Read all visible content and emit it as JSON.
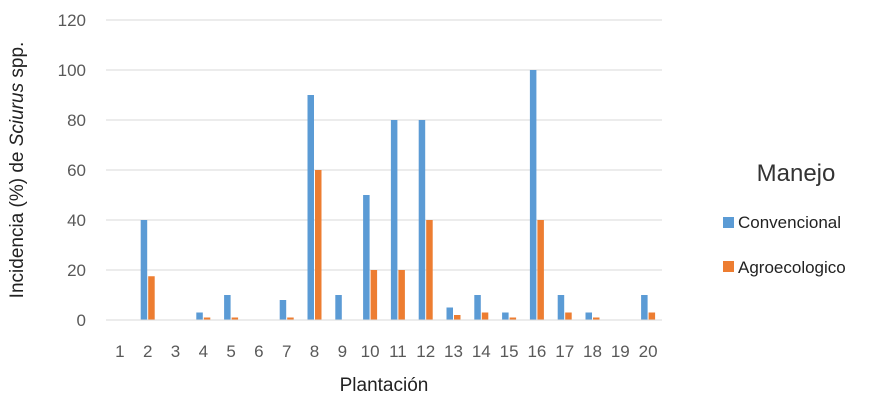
{
  "chart_data": {
    "type": "bar",
    "xlabel": "Plantación",
    "ylabel_prefix": "Incidencia (%) de ",
    "ylabel_italic": "Sciurus",
    "ylabel_suffix": " spp.",
    "ylim": [
      0,
      120
    ],
    "yticks": [
      0,
      20,
      40,
      60,
      80,
      100,
      120
    ],
    "grid": true,
    "legend_position": "right",
    "legend_title": "Manejo",
    "categories": [
      "1",
      "2",
      "3",
      "4",
      "5",
      "6",
      "7",
      "8",
      "9",
      "10",
      "11",
      "12",
      "13",
      "14",
      "15",
      "16",
      "17",
      "18",
      "19",
      "20"
    ],
    "series": [
      {
        "name": "Convencional",
        "color": "#5B9BD5",
        "values": [
          0,
          40,
          0,
          3,
          10,
          0,
          8,
          90,
          10,
          50,
          80,
          80,
          5,
          10,
          3,
          100,
          10,
          3,
          0,
          10
        ]
      },
      {
        "name": "Agroecologico",
        "color": "#ED7D31",
        "values": [
          0,
          17.5,
          0,
          1,
          1,
          0,
          1,
          60,
          0,
          20,
          20,
          40,
          2,
          3,
          1,
          40,
          3,
          1,
          0,
          3
        ]
      }
    ]
  }
}
